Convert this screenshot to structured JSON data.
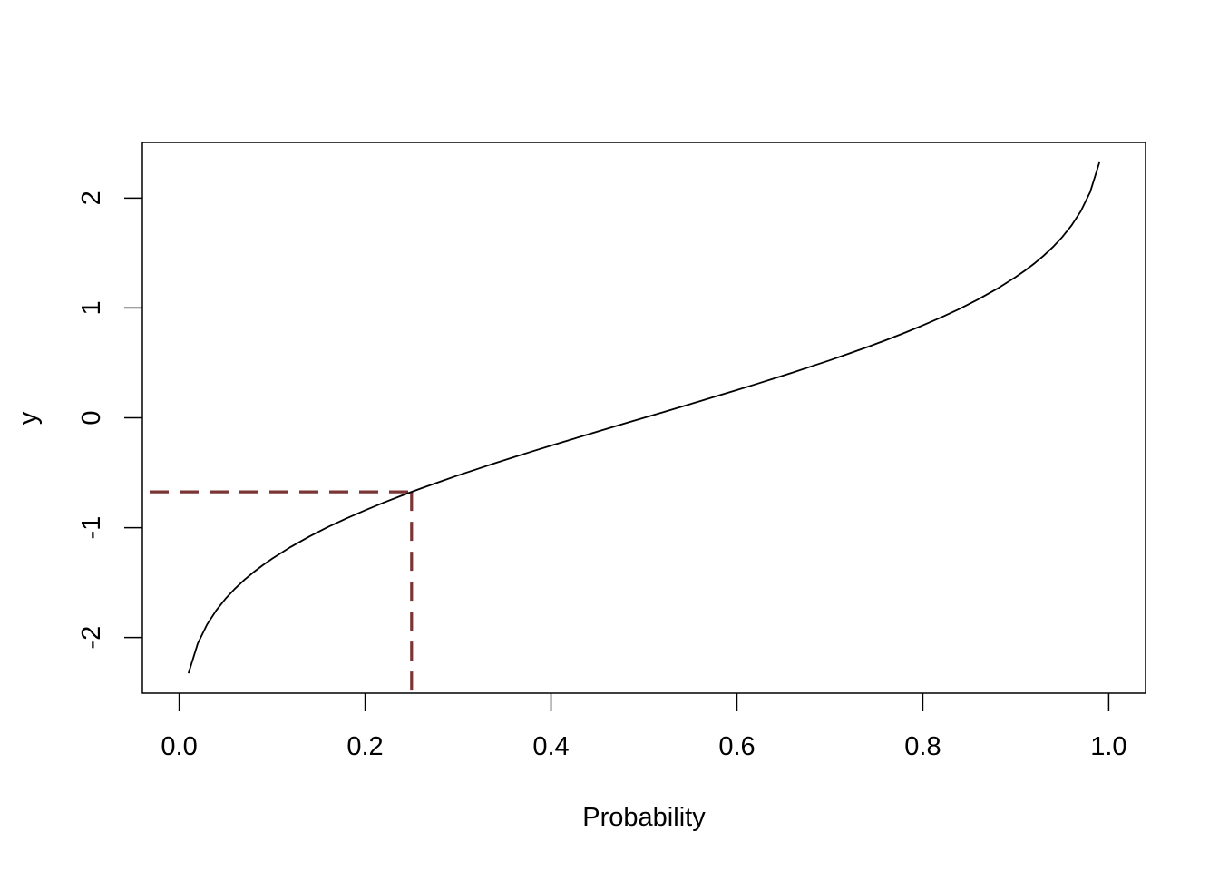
{
  "chart_data": {
    "type": "line",
    "title": "",
    "xlabel": "Probability",
    "ylabel": "y",
    "xlim": [
      -0.0396,
      1.0396
    ],
    "ylim": [
      -2.5064,
      2.5064
    ],
    "x_ticks": [
      0.0,
      0.2,
      0.4,
      0.6,
      0.8,
      1.0
    ],
    "x_tick_labels": [
      "0.0",
      "0.2",
      "0.4",
      "0.6",
      "0.8",
      "1.0"
    ],
    "y_ticks": [
      -2,
      -1,
      0,
      1,
      2
    ],
    "y_tick_labels": [
      "-2",
      "-1",
      "0",
      "1",
      "2"
    ],
    "grid": false,
    "series": [
      {
        "color": "#000000",
        "x": [
          0.01,
          0.02,
          0.03,
          0.04,
          0.05,
          0.06,
          0.07,
          0.08,
          0.09,
          0.1,
          0.12,
          0.14,
          0.16,
          0.18,
          0.2,
          0.22,
          0.24,
          0.25,
          0.26,
          0.28,
          0.3,
          0.32,
          0.34,
          0.36,
          0.38,
          0.4,
          0.42,
          0.44,
          0.46,
          0.48,
          0.5,
          0.52,
          0.54,
          0.56,
          0.58,
          0.6,
          0.62,
          0.64,
          0.66,
          0.68,
          0.7,
          0.72,
          0.74,
          0.76,
          0.78,
          0.8,
          0.82,
          0.84,
          0.86,
          0.88,
          0.9,
          0.91,
          0.92,
          0.93,
          0.94,
          0.95,
          0.96,
          0.97,
          0.98,
          0.99
        ],
        "y": [
          -2.326,
          -2.054,
          -1.881,
          -1.751,
          -1.645,
          -1.555,
          -1.476,
          -1.405,
          -1.341,
          -1.282,
          -1.175,
          -1.08,
          -0.994,
          -0.915,
          -0.842,
          -0.772,
          -0.706,
          -0.674,
          -0.643,
          -0.583,
          -0.524,
          -0.468,
          -0.412,
          -0.358,
          -0.305,
          -0.253,
          -0.202,
          -0.151,
          -0.1,
          -0.05,
          0.0,
          0.05,
          0.1,
          0.151,
          0.202,
          0.253,
          0.305,
          0.358,
          0.412,
          0.468,
          0.524,
          0.583,
          0.643,
          0.706,
          0.772,
          0.842,
          0.915,
          0.994,
          1.08,
          1.175,
          1.282,
          1.341,
          1.405,
          1.476,
          1.555,
          1.645,
          1.751,
          1.881,
          2.054,
          2.326
        ]
      }
    ],
    "reference_lines": {
      "color": "#7b3535",
      "style": "dashed",
      "x": 0.25,
      "y": -0.674
    }
  }
}
